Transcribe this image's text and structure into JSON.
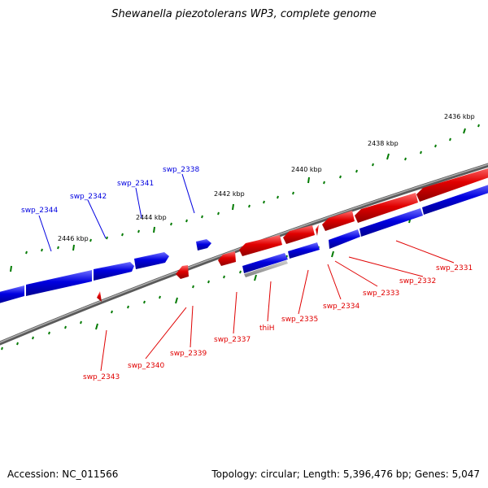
{
  "title": "Shewanella piezotolerans WP3, complete genome",
  "accession": "Accession: NC_011566",
  "topology": "Topology: circular; Length: 5,396,476 bp; Genes: 5,047",
  "colors": {
    "forward": "#0000e0",
    "reverse": "#e00000",
    "tick": "#007a00",
    "backbone": "#808080"
  },
  "tick_labels": [
    "2436 kbp",
    "2438 kbp",
    "2440 kbp",
    "2442 kbp",
    "2444 kbp",
    "2446 kbp"
  ],
  "forward_genes": [
    "swp_2338",
    "swp_2341",
    "swp_2342",
    "swp_2344"
  ],
  "reverse_genes": [
    "swp_2331",
    "swp_2332",
    "swp_2333",
    "swp_2334",
    "swp_2335",
    "thiH",
    "swp_2337",
    "swp_2339",
    "swp_2340",
    "swp_2343"
  ]
}
